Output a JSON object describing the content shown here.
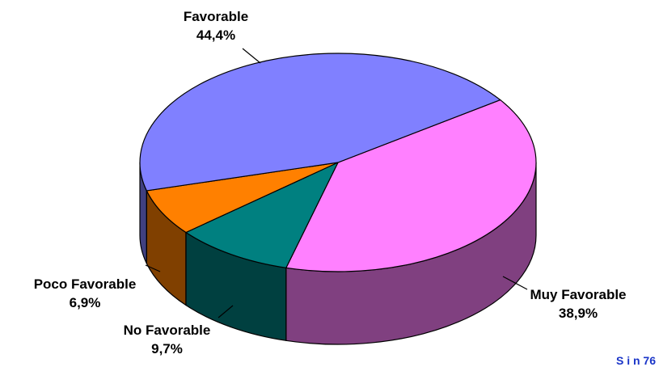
{
  "chart_data": {
    "type": "pie",
    "style": "3d",
    "categories": [
      "Favorable",
      "Muy Favorable",
      "No Favorable",
      "Poco Favorable"
    ],
    "values": [
      44.4,
      38.9,
      9.7,
      6.9
    ],
    "labels": [
      {
        "name": "Favorable",
        "value": "44,4%"
      },
      {
        "name": "Muy Favorable",
        "value": "38,9%"
      },
      {
        "name": "No Favorable",
        "value": "9,7%"
      },
      {
        "name": "Poco Favorable",
        "value": "6,9%"
      }
    ],
    "colors": {
      "Favorable": "#8080ff",
      "Muy Favorable": "#ff80ff",
      "No Favorable": "#008080",
      "Poco Favorable": "#ff8000"
    },
    "title": "",
    "legend": "none"
  },
  "note": "S i n  76"
}
